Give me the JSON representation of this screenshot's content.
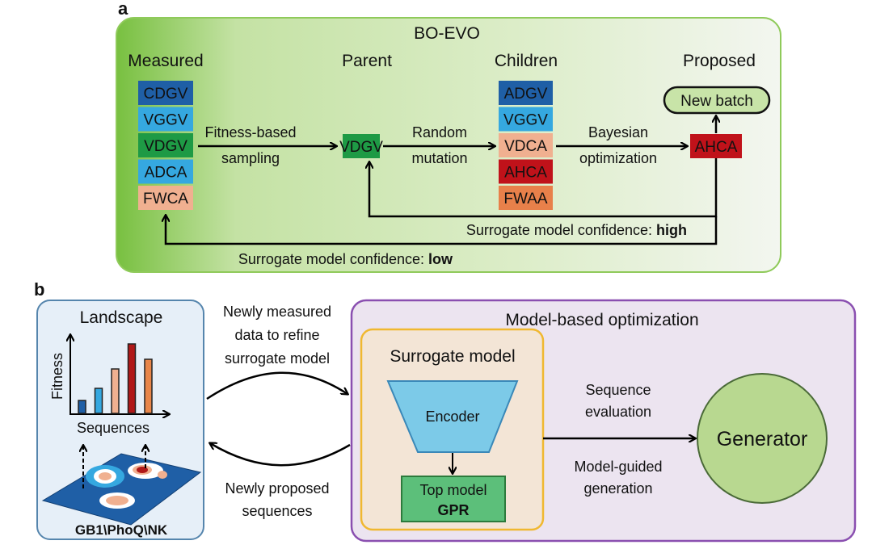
{
  "panel_a": {
    "label": "a",
    "title": "BO-EVO",
    "headers": {
      "measured": "Measured",
      "parent": "Parent",
      "children": "Children",
      "proposed": "Proposed"
    },
    "measured": [
      {
        "seq": "CDGV",
        "color": "#1f5fa6"
      },
      {
        "seq": "VGGV",
        "color": "#35a8e0"
      },
      {
        "seq": "VDGV",
        "color": "#1e9a45"
      },
      {
        "seq": "ADCA",
        "color": "#35a8e0"
      },
      {
        "seq": "FWCA",
        "color": "#f0b090"
      }
    ],
    "parent": {
      "seq": "VDGV",
      "color": "#1e9a45"
    },
    "children": [
      {
        "seq": "ADGV",
        "color": "#1f5fa6"
      },
      {
        "seq": "VGGV",
        "color": "#35a8e0"
      },
      {
        "seq": "VDCA",
        "color": "#f0b090"
      },
      {
        "seq": "AHCA",
        "color": "#c0121a"
      },
      {
        "seq": "FWAA",
        "color": "#e8804a"
      }
    ],
    "proposed": {
      "seq": "AHCA",
      "color": "#c0121a"
    },
    "new_batch": "New batch",
    "arrows": {
      "sampling": [
        "Fitness-based",
        "sampling"
      ],
      "mutation": [
        "Random",
        "mutation"
      ],
      "bayes": [
        "Bayesian",
        "optimization"
      ]
    },
    "feedback_high": {
      "text": "Surrogate model confidence: ",
      "level": "high"
    },
    "feedback_low": {
      "text": "Surrogate model confidence: ",
      "level": "low"
    }
  },
  "panel_b": {
    "label": "b",
    "landscape": {
      "title": "Landscape",
      "ylabel": "Fitness",
      "xlabel": "Sequences",
      "bar_colors": [
        "#1f5fa6",
        "#35a8e0",
        "#f0b090",
        "#b01818",
        "#e8864a"
      ],
      "bar_levels": [
        0.16,
        0.31,
        0.55,
        0.86,
        0.67
      ],
      "datasets": "GB1\\PhoQ\\NK"
    },
    "to_model": [
      "Newly measured",
      "data to refine",
      "surrogate model"
    ],
    "to_landscape": [
      "Newly proposed",
      "sequences"
    ],
    "mbo": {
      "title": "Model-based optimization",
      "surrogate": {
        "title": "Surrogate model",
        "encoder": "Encoder",
        "top_model": "Top model",
        "gpr": "GPR"
      },
      "evaluation": [
        "Sequence",
        "evaluation"
      ],
      "generation": [
        "Model-guided",
        "generation"
      ],
      "generator": "Generator"
    }
  }
}
